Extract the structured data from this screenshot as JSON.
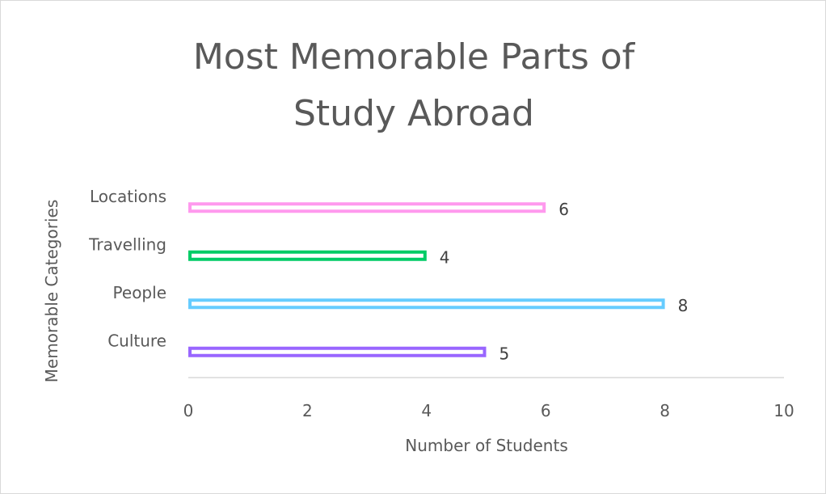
{
  "chart_data": {
    "type": "bar",
    "orientation": "horizontal",
    "title_lines": [
      "Most Memorable Parts of",
      "Study Abroad"
    ],
    "xlabel": "Number of Students",
    "ylabel": "Memorable Categories",
    "categories": [
      "Culture",
      "People",
      "Travelling",
      "Locations"
    ],
    "values": [
      5,
      8,
      4,
      6
    ],
    "colors": [
      "#9966ff",
      "#66ccff",
      "#00cc66",
      "#ff99ee"
    ],
    "xlim": [
      0,
      10
    ],
    "xticks": [
      0,
      2,
      4,
      6,
      8,
      10
    ],
    "xtick_labels": [
      "0",
      "2",
      "4",
      "6",
      "8",
      "10"
    ],
    "data_labels": [
      "5",
      "8",
      "4",
      "6"
    ],
    "grid": false,
    "legend": "none"
  }
}
